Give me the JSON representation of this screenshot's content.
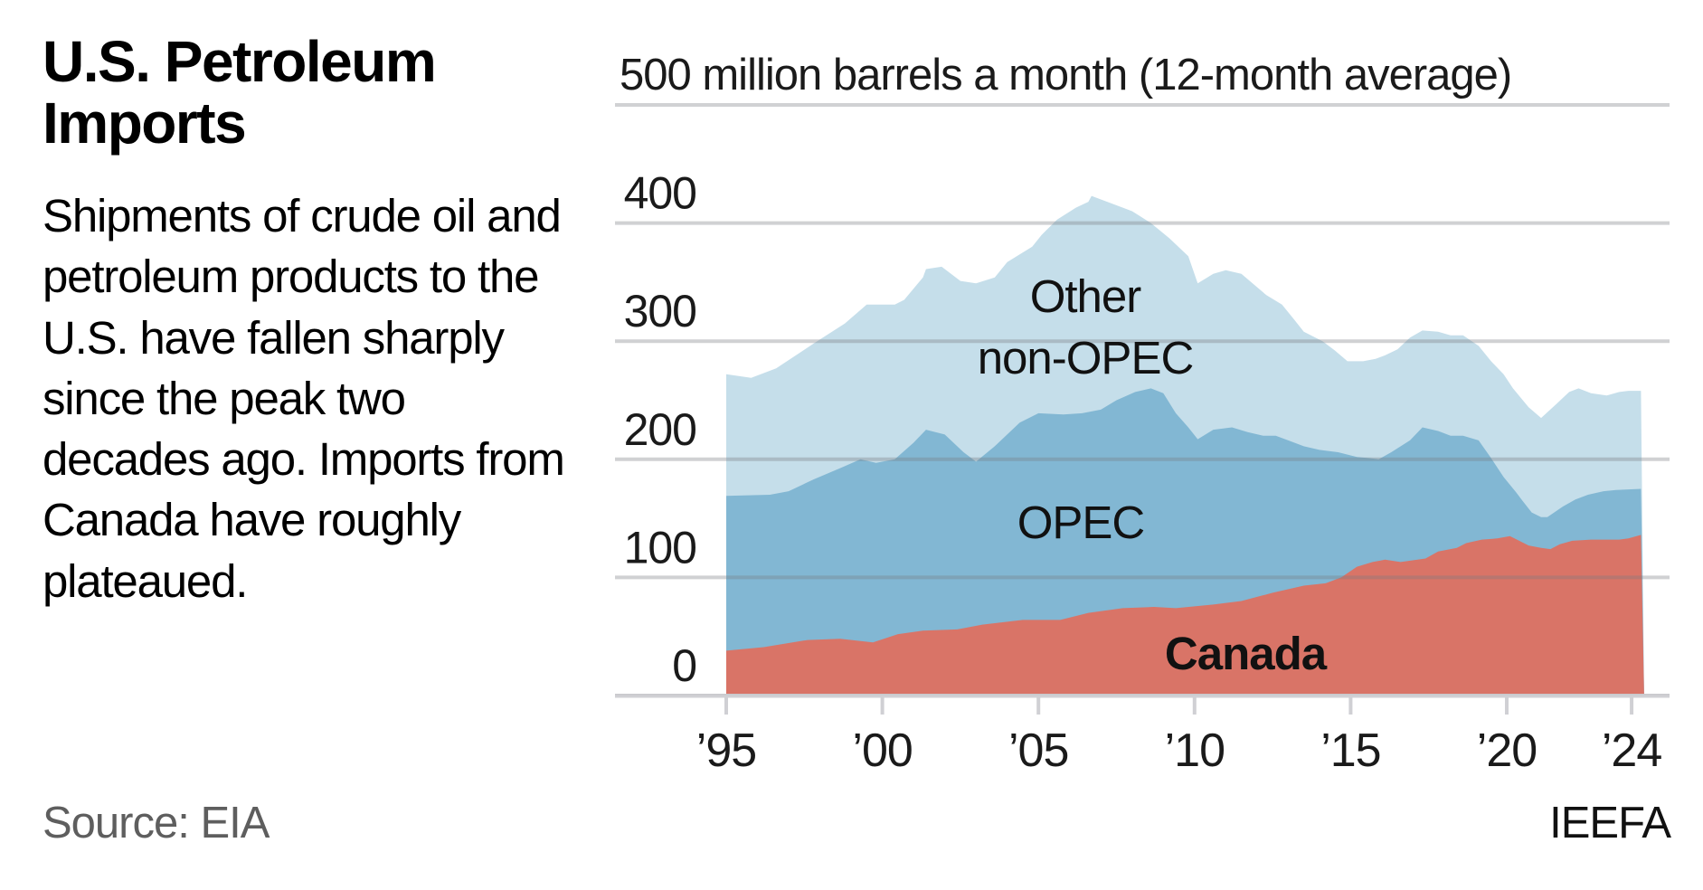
{
  "header": {
    "title": "U.S. Petroleum Imports",
    "description": "Shipments of crude oil and petroleum products to the U.S. have fallen sharply since the peak two decades ago. Imports from Canada have roughly plateaued."
  },
  "footer": {
    "source": "Source: EIA",
    "credit": "IEEFA"
  },
  "colors": {
    "other_non_opec": "#c5deea",
    "opec": "#82b7d3",
    "canada": "#d97467",
    "gridline": "#cfd0d4",
    "text": "#1a1a1a"
  },
  "chart_data": {
    "type": "area",
    "stacked": true,
    "title": "U.S. Petroleum Imports",
    "subtitle": "500 million barrels a month (12-month average)",
    "xlabel": "",
    "ylabel": "million barrels a month (12-month average)",
    "ylim": [
      0,
      500
    ],
    "xlim": [
      1995,
      2024.4
    ],
    "y_ticks": [
      0,
      100,
      200,
      300,
      400,
      500
    ],
    "y_tick_labels": [
      "0",
      "100",
      "200",
      "300",
      "400",
      "500 million barrels a month (12-month average)"
    ],
    "x_ticks": [
      1995,
      2000,
      2005,
      2010,
      2015,
      2020,
      2024
    ],
    "x_tick_labels": [
      "’95",
      "’00",
      "’05",
      "’10",
      "’15",
      "’20",
      "’24"
    ],
    "grid": true,
    "legend": "inline labels",
    "series": [
      {
        "name": "Canada",
        "label_position": [
          2017.2,
          40
        ],
        "bold_label": true,
        "points": [
          [
            1995.0,
            38
          ],
          [
            1996.2,
            41
          ],
          [
            1997.6,
            47
          ],
          [
            1998.65,
            48
          ],
          [
            1999.7,
            45
          ],
          [
            2000.5,
            52
          ],
          [
            2001.3,
            55
          ],
          [
            2002.4,
            56
          ],
          [
            2003.2,
            60
          ],
          [
            2004.5,
            64
          ],
          [
            2005.7,
            64
          ],
          [
            2006.6,
            70
          ],
          [
            2007.7,
            74
          ],
          [
            2008.7,
            75
          ],
          [
            2009.4,
            74
          ],
          [
            2010.6,
            77
          ],
          [
            2011.5,
            80
          ],
          [
            2012.5,
            87
          ],
          [
            2013.5,
            93
          ],
          [
            2014.2,
            95
          ],
          [
            2014.7,
            100
          ],
          [
            2015.2,
            109
          ],
          [
            2015.7,
            113
          ],
          [
            2016.1,
            115
          ],
          [
            2016.6,
            113
          ],
          [
            2017.4,
            116
          ],
          [
            2017.8,
            122
          ],
          [
            2018.4,
            125
          ],
          [
            2018.7,
            129
          ],
          [
            2019.2,
            132
          ],
          [
            2019.7,
            133
          ],
          [
            2020.1,
            135
          ],
          [
            2020.4,
            131
          ],
          [
            2020.7,
            127
          ],
          [
            2021.1,
            125
          ],
          [
            2021.4,
            124
          ],
          [
            2021.7,
            128
          ],
          [
            2022.1,
            131
          ],
          [
            2022.7,
            132
          ],
          [
            2023.6,
            132
          ],
          [
            2023.9,
            133
          ],
          [
            2024.3,
            136
          ]
        ]
      },
      {
        "name": "OPEC",
        "label_position": [
          2011.1,
          134
        ],
        "bold_label": false,
        "cumulative_points": [
          [
            1995.0,
            169
          ],
          [
            1996.4,
            170
          ],
          [
            1997.0,
            173
          ],
          [
            1997.8,
            183
          ],
          [
            1998.7,
            193
          ],
          [
            1999.3,
            200
          ],
          [
            1999.8,
            197
          ],
          [
            2000.4,
            200
          ],
          [
            2001.0,
            214
          ],
          [
            2001.4,
            225
          ],
          [
            2002.0,
            221
          ],
          [
            2002.6,
            206
          ],
          [
            2003.0,
            198
          ],
          [
            2003.6,
            211
          ],
          [
            2004.4,
            231
          ],
          [
            2005.0,
            239
          ],
          [
            2005.8,
            238
          ],
          [
            2006.4,
            239
          ],
          [
            2007.0,
            242
          ],
          [
            2007.5,
            250
          ],
          [
            2008.1,
            257
          ],
          [
            2008.6,
            260
          ],
          [
            2009.0,
            256
          ],
          [
            2009.4,
            239
          ],
          [
            2009.8,
            227
          ],
          [
            2010.1,
            217
          ],
          [
            2010.6,
            225
          ],
          [
            2011.2,
            227
          ],
          [
            2011.7,
            223
          ],
          [
            2012.2,
            220
          ],
          [
            2012.6,
            220
          ],
          [
            2013.0,
            216
          ],
          [
            2013.5,
            211
          ],
          [
            2014.0,
            208
          ],
          [
            2014.6,
            206
          ],
          [
            2015.2,
            202
          ],
          [
            2015.6,
            201
          ],
          [
            2015.9,
            200
          ],
          [
            2016.3,
            206
          ],
          [
            2016.9,
            216
          ],
          [
            2017.3,
            227
          ],
          [
            2017.8,
            224
          ],
          [
            2018.2,
            220
          ],
          [
            2018.6,
            220
          ],
          [
            2019.1,
            216
          ],
          [
            2019.5,
            201
          ],
          [
            2019.9,
            185
          ],
          [
            2020.3,
            172
          ],
          [
            2020.5,
            165
          ],
          [
            2020.8,
            155
          ],
          [
            2021.1,
            151
          ],
          [
            2021.3,
            151
          ],
          [
            2021.8,
            160
          ],
          [
            2022.2,
            166
          ],
          [
            2022.6,
            170
          ],
          [
            2023.1,
            173
          ],
          [
            2023.5,
            174
          ],
          [
            2024.3,
            175
          ]
        ]
      },
      {
        "name": "Other non-OPEC",
        "label_lines": [
          "Other",
          "non-OPEC"
        ],
        "label_position": [
          2011.2,
          325
        ],
        "bold_label": false,
        "cumulative_points": [
          [
            1995.0,
            272
          ],
          [
            1995.8,
            269
          ],
          [
            1996.6,
            277
          ],
          [
            1997.8,
            298
          ],
          [
            1998.8,
            315
          ],
          [
            1999.5,
            331
          ],
          [
            2000.4,
            331
          ],
          [
            2000.7,
            335
          ],
          [
            2001.3,
            354
          ],
          [
            2001.4,
            361
          ],
          [
            2001.9,
            363
          ],
          [
            2002.5,
            351
          ],
          [
            2003.0,
            349
          ],
          [
            2003.6,
            354
          ],
          [
            2004.0,
            367
          ],
          [
            2004.8,
            380
          ],
          [
            2005.1,
            390
          ],
          [
            2005.6,
            403
          ],
          [
            2006.2,
            413
          ],
          [
            2006.6,
            418
          ],
          [
            2006.7,
            423
          ],
          [
            2007.3,
            417
          ],
          [
            2008.0,
            410
          ],
          [
            2008.6,
            400
          ],
          [
            2009.2,
            387
          ],
          [
            2009.8,
            372
          ],
          [
            2010.1,
            349
          ],
          [
            2010.6,
            357
          ],
          [
            2011.0,
            360
          ],
          [
            2011.5,
            357
          ],
          [
            2011.9,
            348
          ],
          [
            2012.3,
            339
          ],
          [
            2012.8,
            331
          ],
          [
            2013.2,
            318
          ],
          [
            2013.5,
            308
          ],
          [
            2014.1,
            300
          ],
          [
            2014.5,
            292
          ],
          [
            2014.9,
            283
          ],
          [
            2015.4,
            283
          ],
          [
            2015.8,
            285
          ],
          [
            2016.1,
            288
          ],
          [
            2016.5,
            293
          ],
          [
            2016.9,
            303
          ],
          [
            2017.3,
            309
          ],
          [
            2017.8,
            308
          ],
          [
            2018.2,
            305
          ],
          [
            2018.6,
            305
          ],
          [
            2019.1,
            296
          ],
          [
            2019.5,
            283
          ],
          [
            2019.9,
            272
          ],
          [
            2020.2,
            260
          ],
          [
            2020.7,
            244
          ],
          [
            2021.1,
            235
          ],
          [
            2021.6,
            247
          ],
          [
            2022.0,
            257
          ],
          [
            2022.3,
            260
          ],
          [
            2022.7,
            256
          ],
          [
            2023.2,
            254
          ],
          [
            2023.6,
            257
          ],
          [
            2023.9,
            258
          ],
          [
            2024.3,
            258
          ]
        ]
      }
    ]
  }
}
